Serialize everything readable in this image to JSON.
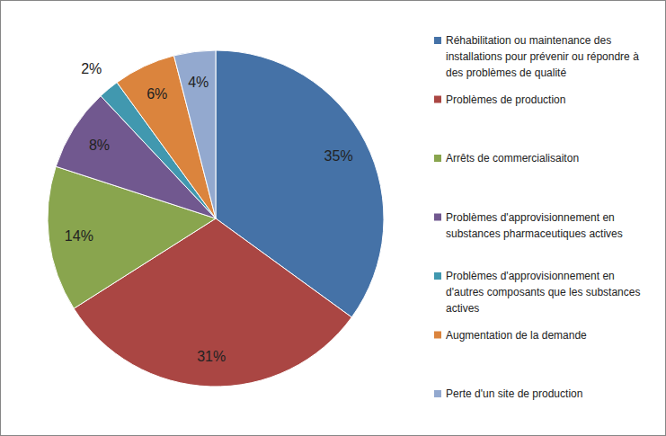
{
  "chart_data": {
    "type": "pie",
    "categories": [
      "Réhabilitation ou maintenance des installations pour prévenir ou répondre à des problèmes de qualité",
      "Problèmes de production",
      "Arrêts de commercialisaiton",
      "Problèmes d'approvisionnement en substances pharmaceutiques actives",
      "Problèmes d'approvisionnement en d'autres composants que les substances actives",
      "Augmentation de la demande",
      "Perte d'un site de production"
    ],
    "values": [
      35,
      31,
      14,
      8,
      2,
      6,
      4
    ],
    "value_labels": [
      "35%",
      "31%",
      "14%",
      "8%",
      "2%",
      "6%",
      "4%"
    ],
    "colors": [
      "#4572a7",
      "#aa4643",
      "#89a54e",
      "#71588f",
      "#4198af",
      "#db843d",
      "#93a9cf"
    ],
    "data_labels": true,
    "legend": "right"
  }
}
